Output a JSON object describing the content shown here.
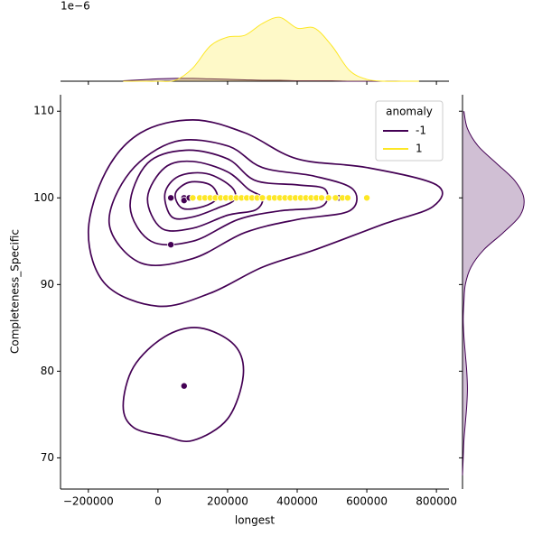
{
  "chart_data": {
    "type": "scatter",
    "xlabel": "longest",
    "ylabel": "Completeness_Specific",
    "xlim": [
      -280000,
      836000
    ],
    "ylim": [
      66.4,
      111.9
    ],
    "xticks": [
      {
        "value": -200000,
        "label": "−200000"
      },
      0,
      200000,
      400000,
      600000,
      800000
    ],
    "yticks": [
      70,
      80,
      90,
      100,
      110
    ],
    "legend_title": "anomaly",
    "legend_position": "upper right",
    "series": [
      {
        "name": "-1",
        "color": "#440154",
        "x": [
          37000,
          37000,
          75000,
          75000,
          90000,
          75000,
          520000
        ],
        "values": [
          100,
          94.6,
          100,
          99.7,
          100,
          78.3,
          100
        ],
        "contours": [
          {
            "x": [
              -200000,
              -150000,
              -50000,
              100000,
              250000,
              400000,
              600000,
              800000,
              790000,
              650000,
              450000,
              300000,
              150000,
              0,
              -150000
            ],
            "y": [
              96,
              103,
              107.5,
              109,
              107.5,
              104.5,
              103.5,
              101.5,
              99,
              97,
              94,
              92,
              89,
              87.5,
              90
            ]
          },
          {
            "x": [
              -140000,
              -80000,
              50000,
              200000,
              300000,
              450000,
              560000,
              550000,
              400000,
              250000,
              100000,
              -50000
            ],
            "y": [
              97,
              103,
              106.5,
              106,
              103.5,
              102.5,
              101,
              98.5,
              97.5,
              96,
              93,
              92.5
            ]
          },
          {
            "x": [
              -80000,
              -30000,
              80000,
              200000,
              280000,
              400000,
              480000,
              470000,
              350000,
              230000,
              100000,
              -20000
            ],
            "y": [
              99,
              104,
              105.5,
              104.5,
              102,
              101.5,
              101,
              99,
              98.5,
              97.5,
              95,
              95
            ]
          },
          {
            "x": [
              -30000,
              20000,
              100000,
              200000,
              260000,
              300000,
              280000,
              200000,
              100000,
              10000
            ],
            "y": [
              100,
              103.5,
              104.2,
              103,
              101,
              100,
              98.6,
              98,
              96.5,
              96.5
            ]
          },
          {
            "x": [
              20000,
              60000,
              140000,
              210000,
              220000,
              170000,
              100000,
              40000
            ],
            "y": [
              100.5,
              102.5,
              102.8,
              101.3,
              99.8,
              98.8,
              97.8,
              97.8
            ]
          },
          {
            "x": [
              50000,
              90000,
              150000,
              170000,
              130000,
              70000
            ],
            "y": [
              100.5,
              101.8,
              101.5,
              100,
              99,
              98.8
            ]
          },
          {
            "x": [
              -100000,
              -70000,
              20000,
              120000,
              220000,
              245000,
              200000,
              100000,
              20000,
              -70000
            ],
            "y": [
              76,
              80.5,
              84,
              85,
              83,
              79.5,
              74.5,
              72,
              72.5,
              73.5
            ]
          }
        ],
        "density_x": [
          0.01,
          0.03,
          0.05,
          0.06,
          0.06,
          0.05,
          0.04,
          0.03,
          0.02,
          0.02,
          0.01,
          0.01,
          0.01,
          0,
          0,
          0,
          0,
          0
        ],
        "density_y": [
          0,
          0.01,
          0.02,
          0.04,
          0.06,
          0.07,
          0.06,
          0.04,
          0.02,
          0.01,
          0.02,
          0.04,
          0.12,
          0.3,
          0.58,
          0.82,
          0.87,
          0.74,
          0.48,
          0.22,
          0.07,
          0.02
        ]
      },
      {
        "name": "1",
        "color": "#fde725",
        "x": [
          100000,
          120000,
          135000,
          150000,
          165000,
          180000,
          195000,
          210000,
          225000,
          240000,
          255000,
          270000,
          285000,
          300000,
          320000,
          335000,
          350000,
          365000,
          380000,
          395000,
          410000,
          425000,
          440000,
          455000,
          470000,
          490000,
          510000,
          530000,
          545000,
          600000
        ],
        "values": [
          100,
          100,
          100,
          100,
          100,
          100,
          100,
          100,
          100,
          100,
          100,
          100,
          100,
          100,
          100,
          100,
          100,
          100,
          100,
          100,
          100,
          100,
          100,
          100,
          100,
          100,
          100,
          100,
          100,
          100
        ],
        "density_x": [
          0,
          0,
          0,
          0.02,
          0.28,
          0.75,
          0.94,
          0.98,
          1.23,
          1.36,
          1.13,
          1.13,
          0.75,
          0.23,
          0.04,
          0,
          0,
          0
        ]
      }
    ],
    "density_x_grid": [
      -100000,
      -50000,
      0,
      50000,
      100000,
      150000,
      200000,
      250000,
      300000,
      350000,
      400000,
      450000,
      500000,
      550000,
      600000,
      650000,
      700000,
      750000
    ],
    "density_x_offset": "1e−6",
    "density_x_lim": [
      0,
      1.5
    ],
    "density_y_grid": [
      68,
      70,
      72,
      74,
      76,
      78,
      80,
      82,
      84,
      86,
      88,
      90,
      92,
      94,
      96,
      98,
      100,
      102,
      104,
      106,
      108,
      110
    ],
    "density_y_lim": [
      0,
      1
    ]
  }
}
